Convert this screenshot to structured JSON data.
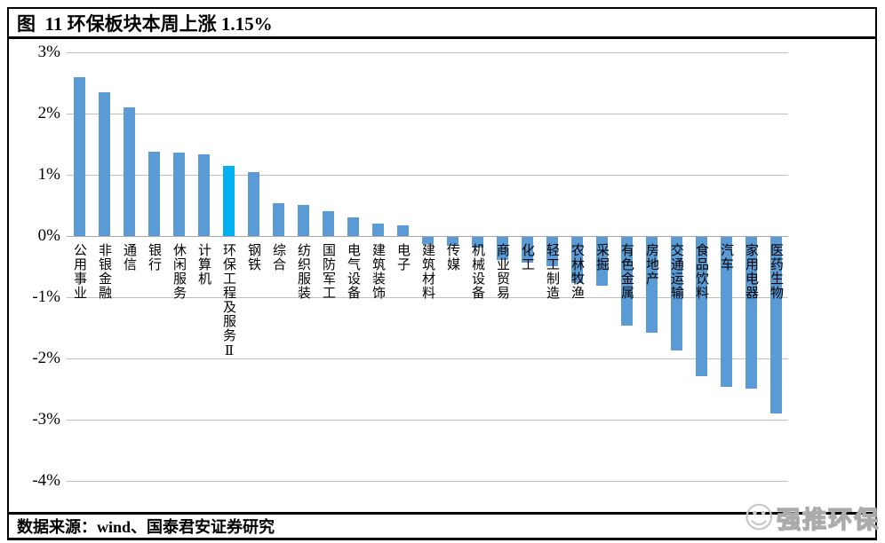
{
  "figure": {
    "title": "图  11 环保板块本周上涨 1.15%",
    "source_note": "数据来源：wind、国泰君安证券研究",
    "watermark": {
      "face_icon": "smiley-face",
      "text": "强推环保"
    }
  },
  "chart_data": {
    "type": "bar",
    "title": "图 11 环保板块本周上涨 1.15%",
    "xlabel": "",
    "ylabel": "",
    "unit": "%",
    "ylim": [
      -4,
      3
    ],
    "grid": true,
    "legend_position": "none",
    "y_ticks": [
      "3%",
      "2%",
      "1%",
      "0%",
      "-1%",
      "-2%",
      "-3%",
      "-4%"
    ],
    "categories": [
      "公用事业",
      "非银金融",
      "通信",
      "银行",
      "休闲服务",
      "计算机",
      "环保工程及服务Ⅱ",
      "钢铁",
      "综合",
      "纺织服装",
      "国防军工",
      "电气设备",
      "建筑装饰",
      "电子",
      "建筑材料",
      "传媒",
      "机械设备",
      "商业贸易",
      "化工",
      "轻工制造",
      "农林牧渔",
      "采掘",
      "有色金属",
      "房地产",
      "交通运输",
      "食品饮料",
      "汽车",
      "家用电器",
      "医药生物"
    ],
    "values": [
      2.6,
      2.35,
      2.1,
      1.38,
      1.36,
      1.34,
      1.15,
      1.05,
      0.53,
      0.51,
      0.4,
      0.3,
      0.2,
      0.17,
      -0.12,
      -0.15,
      -0.18,
      -0.38,
      -0.42,
      -0.48,
      -0.75,
      -0.8,
      -1.45,
      -1.57,
      -1.85,
      -2.27,
      -2.45,
      -2.48,
      -2.88
    ],
    "highlight_index": 6,
    "bar_color": "#5B9BD5",
    "highlight_color": "#00B0F0",
    "gridline_color": "#bfbfbf",
    "zero_line_color": "#a6a6a6"
  }
}
